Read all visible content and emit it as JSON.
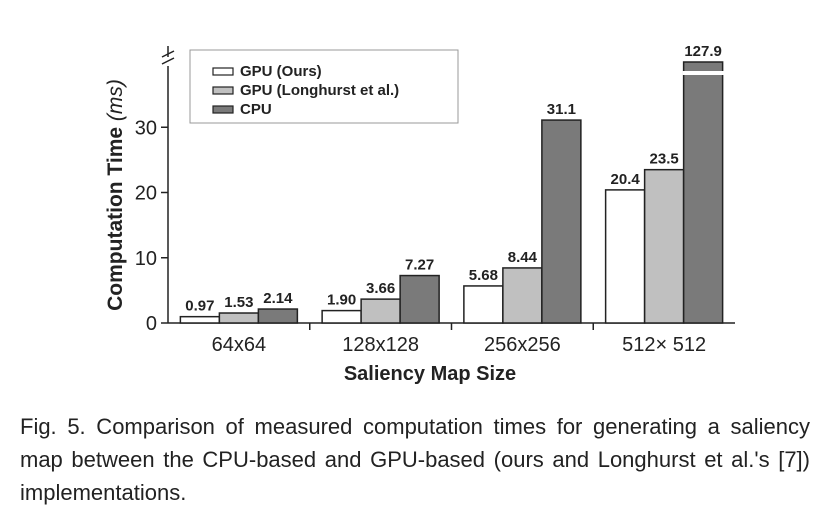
{
  "chart_data": {
    "type": "bar",
    "categories": [
      "64x64",
      "128x128",
      "256x256",
      "512× 512"
    ],
    "series": [
      {
        "name": "GPU (Ours)",
        "values": [
          0.97,
          1.9,
          5.68,
          20.4
        ],
        "labels": [
          "0.97",
          "1.90",
          "5.68",
          "20.4"
        ],
        "color": "#ffffff"
      },
      {
        "name": "GPU (Longhurst et al.)",
        "values": [
          1.53,
          3.66,
          8.44,
          23.5
        ],
        "labels": [
          "1.53",
          "3.66",
          "8.44",
          "23.5"
        ],
        "color": "#c0c0c0"
      },
      {
        "name": "CPU",
        "values": [
          2.14,
          7.27,
          31.1,
          127.9
        ],
        "labels": [
          "2.14",
          "7.27",
          "31.1",
          "127.9"
        ],
        "color": "#7a7a7a"
      }
    ],
    "xlabel": "Saliency Map Size",
    "ylabel_main": "Computation Time ",
    "ylabel_unit": "(ms)",
    "ylim": [
      0,
      40
    ],
    "axis_break": true,
    "yticks": [
      0,
      10,
      20,
      30
    ],
    "legend_position": "top-left",
    "grid": false
  },
  "caption": "Fig. 5. Comparison of measured computation times for generating a saliency map between the CPU-based and GPU-based (ours and Longhurst et al.'s [7]) implementations."
}
